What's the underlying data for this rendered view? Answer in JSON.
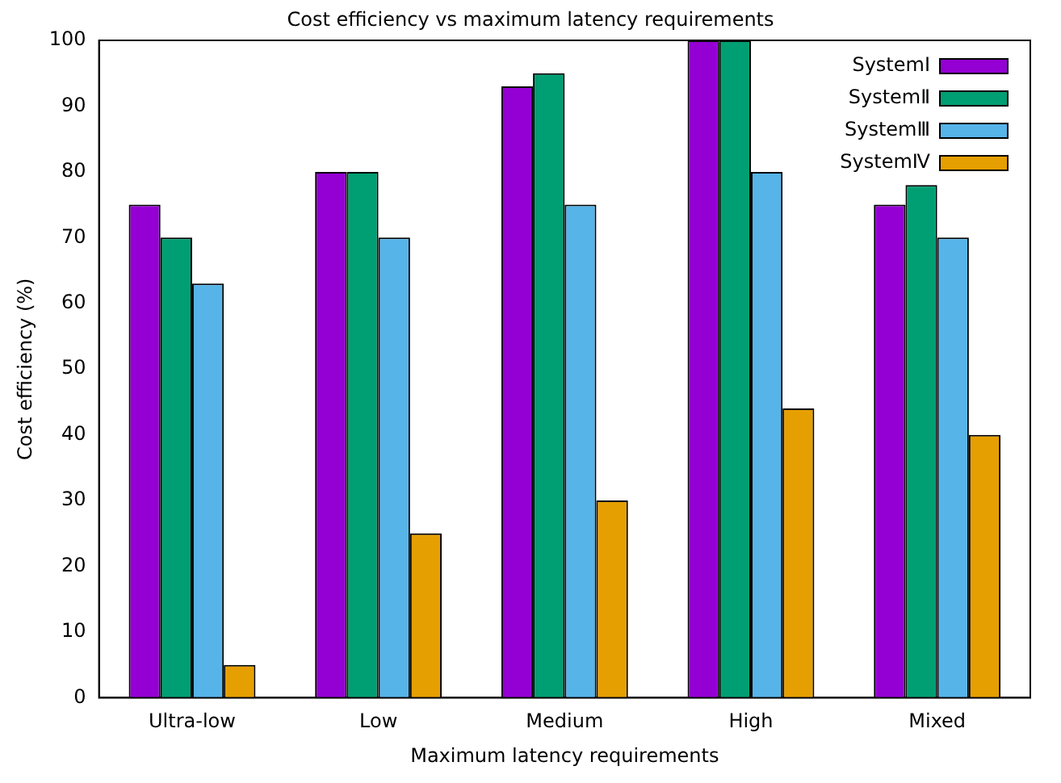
{
  "chart_data": {
    "type": "bar",
    "title": "Cost efficiency vs maximum latency requirements",
    "xlabel": "Maximum latency requirements",
    "ylabel": "Cost efficiency (%)",
    "categories": [
      "Ultra-low",
      "Low",
      "Medium",
      "High",
      "Mixed"
    ],
    "series": [
      {
        "name": "SystemⅠ",
        "color": "#9400d3",
        "values": [
          75,
          80,
          93,
          100,
          75
        ]
      },
      {
        "name": "SystemⅡ",
        "color": "#009e73",
        "values": [
          70,
          80,
          95,
          100,
          78
        ]
      },
      {
        "name": "SystemⅢ",
        "color": "#56b4e9",
        "values": [
          63,
          70,
          75,
          80,
          70
        ]
      },
      {
        "name": "SystemⅣ",
        "color": "#e69f00",
        "values": [
          5,
          25,
          30,
          44,
          40
        ]
      }
    ],
    "ylim": [
      0,
      100
    ],
    "yticks": [
      0,
      10,
      20,
      30,
      40,
      50,
      60,
      70,
      80,
      90,
      100
    ],
    "grid": false,
    "legend": "top right"
  }
}
